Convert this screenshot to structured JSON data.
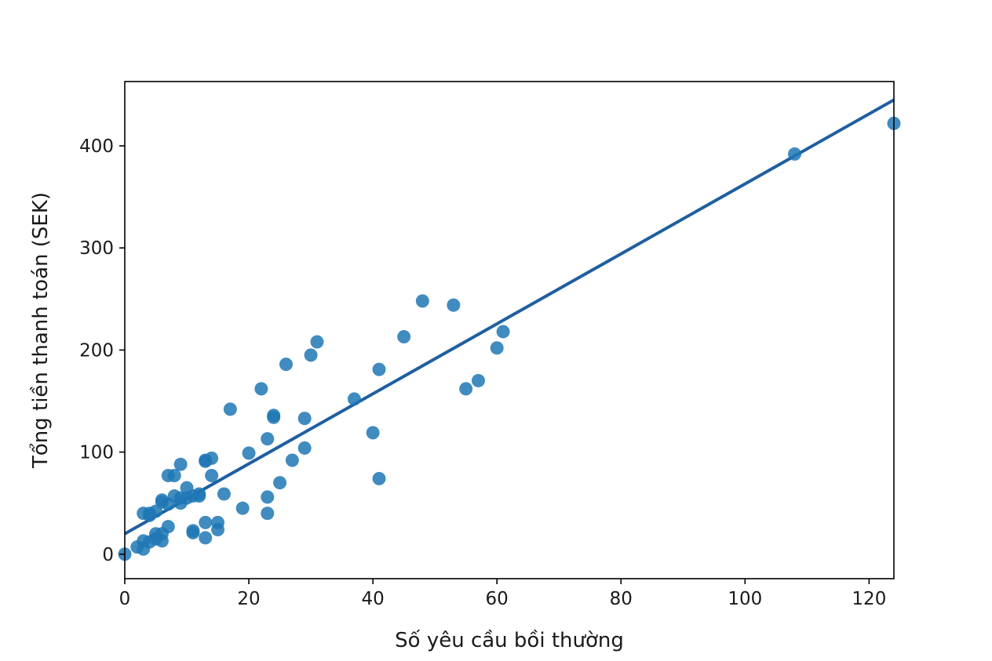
{
  "chart_data": {
    "type": "scatter",
    "title": "",
    "xlabel": "Số yêu cầu bồi thường",
    "ylabel": "Tổng tiền thanh toán (SEK)",
    "xlim": [
      0,
      124
    ],
    "ylim": [
      -24,
      463
    ],
    "xticks": [
      0,
      20,
      40,
      60,
      80,
      100,
      120
    ],
    "yticks": [
      0,
      100,
      200,
      300,
      400
    ],
    "grid": false,
    "legend": "none",
    "colors": {
      "points": "#1f77b4",
      "line": "#1f5f9f",
      "axes": "#000000"
    },
    "regression_line": {
      "x": [
        0,
        124
      ],
      "y": [
        20,
        445
      ]
    },
    "series": [
      {
        "x": [
          0,
          2,
          3,
          3,
          4,
          4,
          5,
          5,
          6,
          6,
          7,
          8,
          9,
          10,
          11,
          12,
          13,
          13,
          14,
          15,
          16,
          17,
          19,
          20,
          22,
          23,
          23,
          23,
          24,
          24,
          25,
          26,
          27,
          29,
          29,
          30,
          31,
          37,
          40,
          41,
          41,
          45,
          48,
          53,
          55,
          57,
          60,
          61,
          108,
          124,
          3,
          4,
          6,
          7,
          7,
          8,
          9,
          9,
          10,
          11,
          11,
          12,
          13,
          13,
          14,
          15,
          5,
          6
        ],
        "y": [
          0,
          7,
          5,
          13,
          12,
          40,
          15,
          20,
          13,
          51,
          27,
          57,
          50,
          55,
          21,
          59,
          31,
          16,
          77,
          31,
          59,
          142,
          45,
          99,
          162,
          113,
          56,
          40,
          136,
          134,
          70,
          186,
          92,
          133,
          104,
          195,
          208,
          152,
          119,
          181,
          74,
          213,
          248,
          244,
          162,
          170,
          202,
          218,
          392,
          422,
          40,
          38,
          53,
          77,
          49,
          77,
          88,
          55,
          65,
          23,
          57,
          57,
          92,
          91,
          94,
          24,
          42,
          20
        ]
      }
    ]
  }
}
